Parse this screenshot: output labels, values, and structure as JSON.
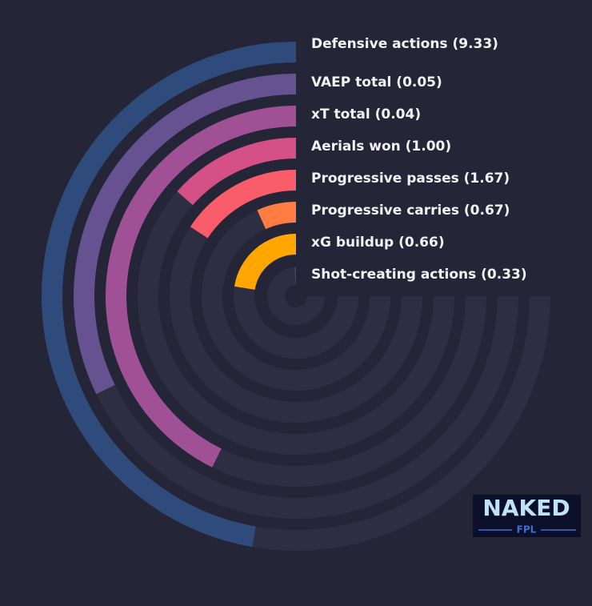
{
  "chart_data": {
    "type": "radial-bar",
    "categories": [
      "Defensive actions (9.33)",
      "VAEP total (0.05)",
      "xT total (0.04)",
      "Aerials won (1.00)",
      "Progressive passes (1.67)",
      "Progressive carries (0.67)",
      "xG buildup (0.66)",
      "Shot-creating actions (0.33)"
    ],
    "values": [
      63,
      43,
      57,
      18,
      21,
      9,
      30,
      1
    ],
    "colors": [
      "#2f4b7c",
      "#665191",
      "#a05195",
      "#d45087",
      "#f95d6a",
      "#ff7c43",
      "#ffa600",
      "#2f4b7c"
    ],
    "ylim": [
      0,
      100
    ]
  },
  "logo": {
    "title": "NAKED",
    "subtitle": "FPL"
  }
}
